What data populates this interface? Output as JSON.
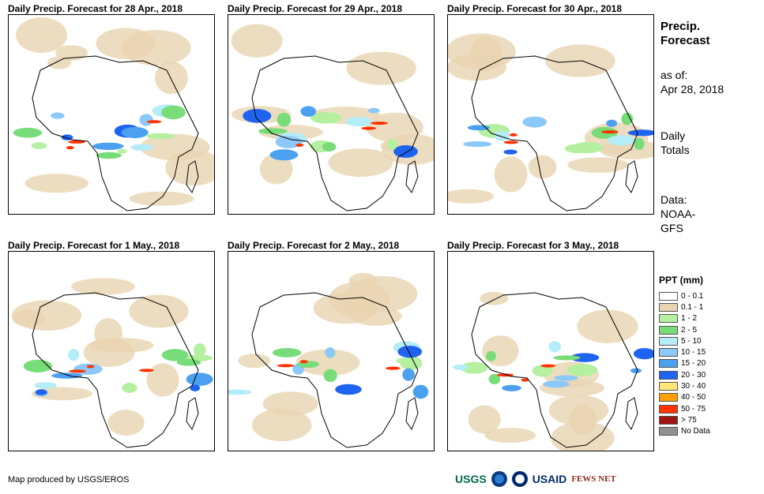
{
  "panels": [
    {
      "title": "Daily Precip. Forecast for 28 Apr., 2018"
    },
    {
      "title": "Daily Precip. Forecast for 29 Apr., 2018"
    },
    {
      "title": "Daily Precip. Forecast for 30 Apr., 2018"
    },
    {
      "title": "Daily Precip. Forecast for 1 May., 2018"
    },
    {
      "title": "Daily Precip. Forecast for 2 May., 2018"
    },
    {
      "title": "Daily Precip. Forecast for 3 May., 2018"
    }
  ],
  "side": {
    "title_line1": "Precip.",
    "title_line2": "Forecast",
    "asof_line1": "as of:",
    "asof_line2": "Apr 28, 2018",
    "totals_line1": "Daily",
    "totals_line2": "Totals",
    "data_line1": "Data:",
    "data_line2": "NOAA-",
    "data_line3": "GFS"
  },
  "legend": {
    "title": "PPT (mm)",
    "items": [
      {
        "label": "0 - 0.1",
        "color": "#ffffff"
      },
      {
        "label": "0.1 - 1",
        "color": "#e8d4b0"
      },
      {
        "label": "1 - 2",
        "color": "#b4f0a0"
      },
      {
        "label": "2 - 5",
        "color": "#78dc78"
      },
      {
        "label": "5 - 10",
        "color": "#b4ecf8"
      },
      {
        "label": "10 - 15",
        "color": "#8cc8f8"
      },
      {
        "label": "15 - 20",
        "color": "#4ca0f0"
      },
      {
        "label": "20 - 30",
        "color": "#1e64f0"
      },
      {
        "label": "30 - 40",
        "color": "#ffe678"
      },
      {
        "label": "40 - 50",
        "color": "#ffa000"
      },
      {
        "label": "50 - 75",
        "color": "#ff3200"
      },
      {
        "label": "> 75",
        "color": "#a01414"
      },
      {
        "label": "No Data",
        "color": "#909090"
      }
    ]
  },
  "footer": {
    "credit": "Map produced by USGS/EROS"
  },
  "logos": {
    "usgs": "USGS",
    "usaid": "USAID",
    "fews": "FEWS NET"
  }
}
